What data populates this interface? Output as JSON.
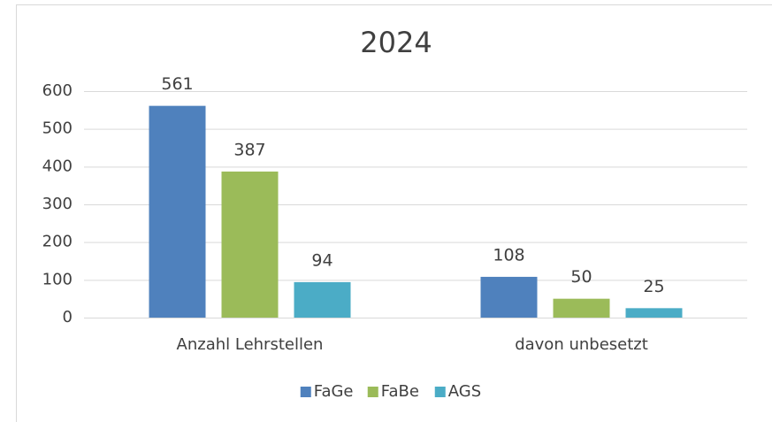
{
  "chart_data": {
    "type": "bar",
    "title": "2024",
    "categories": [
      "Anzahl Lehrstellen",
      "davon unbesetzt"
    ],
    "series": [
      {
        "name": "FaGe",
        "color": "#4f81bd",
        "values": [
          561,
          108
        ]
      },
      {
        "name": "FaBe",
        "color": "#9bbb59",
        "values": [
          387,
          50
        ]
      },
      {
        "name": "AGS",
        "color": "#4bacc6",
        "values": [
          94,
          25
        ]
      }
    ],
    "ylim": [
      0,
      600
    ],
    "yticks": [
      0,
      100,
      200,
      300,
      400,
      500,
      600
    ],
    "grid": true,
    "legend": "bottom"
  }
}
